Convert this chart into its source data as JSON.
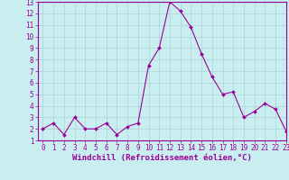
{
  "x": [
    0,
    1,
    2,
    3,
    4,
    5,
    6,
    7,
    8,
    9,
    10,
    11,
    12,
    13,
    14,
    15,
    16,
    17,
    18,
    19,
    20,
    21,
    22,
    23
  ],
  "y": [
    2,
    2.5,
    1.5,
    3,
    2,
    2,
    2.5,
    1.5,
    2.2,
    2.5,
    7.5,
    9,
    13,
    12.2,
    10.8,
    8.5,
    6.5,
    5,
    5.2,
    3,
    3.5,
    4.2,
    3.7,
    1.8
  ],
  "line_color": "#990099",
  "marker_color": "#990099",
  "bg_color": "#c8eef0",
  "grid_color": "#aacccc",
  "xlabel": "Windchill (Refroidissement éolien,°C)",
  "xlabel_color": "#990099",
  "ylim": [
    1,
    13
  ],
  "xlim": [
    -0.5,
    23
  ],
  "yticks": [
    1,
    2,
    3,
    4,
    5,
    6,
    7,
    8,
    9,
    10,
    11,
    12,
    13
  ],
  "xticks": [
    0,
    1,
    2,
    3,
    4,
    5,
    6,
    7,
    8,
    9,
    10,
    11,
    12,
    13,
    14,
    15,
    16,
    17,
    18,
    19,
    20,
    21,
    22,
    23
  ],
  "tick_color": "#990099",
  "tick_fontsize": 5.5,
  "xlabel_fontsize": 6.5,
  "marker_size": 2.0,
  "line_width": 0.8,
  "spine_color": "#990099",
  "border_color": "#990099"
}
